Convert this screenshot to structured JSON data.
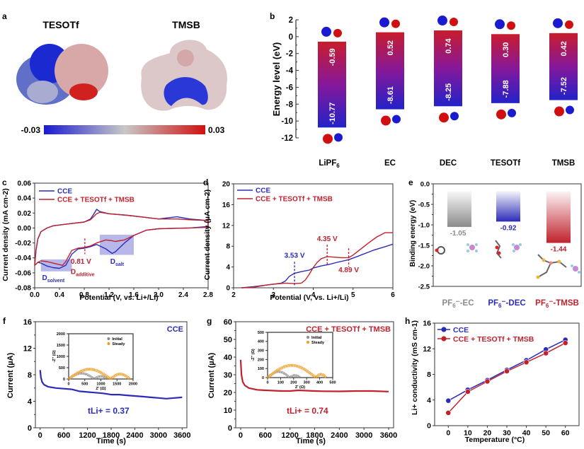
{
  "colors": {
    "blue": "#2b2bb8",
    "red": "#c0222c",
    "gray": "#8a8a8a",
    "orange": "#f39a1e",
    "axis": "#333333"
  },
  "chart_data": [
    {
      "panel": "a",
      "type": "heatmap",
      "title_left": "TESOTf",
      "title_right": "TMSB",
      "colorbar": {
        "min": -0.03,
        "max": 0.03,
        "min_label": "-0.03",
        "max_label": "0.03",
        "colors": [
          "#1a1ad0",
          "#c8c8c8",
          "#d01010"
        ]
      }
    },
    {
      "panel": "b",
      "type": "bar",
      "ylabel": "Energy level (eV)",
      "ylim": [
        -12,
        2
      ],
      "yticks": [
        "2",
        "0",
        "-2",
        "-4",
        "-6",
        "-8",
        "-10",
        "-12"
      ],
      "categories": [
        "LiPF6",
        "EC",
        "DEC",
        "TESOTf",
        "TMSB"
      ],
      "lumo": [
        -0.59,
        0.52,
        0.74,
        0.3,
        0.42
      ],
      "homo": [
        -10.77,
        -8.61,
        -8.25,
        -7.88,
        -7.52
      ],
      "lumo_labels": [
        "-0.59",
        "0.52",
        "0.74",
        "0.30",
        "0.42"
      ],
      "homo_labels": [
        "-10.77",
        "-8.61",
        "-8.25",
        "-7.88",
        "-7.52"
      ]
    },
    {
      "panel": "c",
      "type": "line",
      "xlabel": "Potential (V, vs. Li+/Li)",
      "ylabel": "Current density (mA cm-2)",
      "xlim": [
        0,
        2.8
      ],
      "ylim": [
        -0.08,
        0.06
      ],
      "xticks": [
        "0.0",
        "0.4",
        "0.8",
        "1.2",
        "1.6",
        "2.0",
        "2.4",
        "2.8"
      ],
      "yticks": [
        "0.06",
        "0.04",
        "0.02",
        "0.00",
        "-0.02",
        "-0.04",
        "-0.06",
        "-0.08"
      ],
      "legend": [
        "CCE",
        "CCE + TESOTf + TMSB"
      ],
      "annotations": [
        "0.81 V",
        "D_additive",
        "D_solvent",
        "D_salt"
      ],
      "series": [
        {
          "name": "CCE",
          "x": [
            0.0,
            0.02,
            0.05,
            0.1,
            0.2,
            0.3,
            0.4,
            0.6,
            0.8,
            0.9,
            0.95,
            1.0,
            1.05,
            1.2,
            1.5,
            1.8,
            2.0,
            2.2,
            2.3,
            2.5,
            2.8,
            2.8,
            2.5,
            2.0,
            1.8,
            1.6,
            1.45,
            1.3,
            1.25,
            1.15,
            1.0,
            0.9,
            0.8,
            0.7,
            0.6,
            0.5,
            0.4,
            0.3,
            0.2,
            0.1,
            0.05,
            0.0
          ],
          "y": [
            -0.05,
            -0.03,
            -0.015,
            -0.005,
            0.0,
            0.003,
            0.004,
            0.006,
            0.008,
            0.012,
            0.018,
            0.025,
            0.022,
            0.019,
            0.017,
            0.014,
            0.012,
            0.014,
            0.015,
            0.012,
            0.01,
            0.002,
            0.0,
            -0.001,
            -0.003,
            -0.01,
            -0.02,
            -0.032,
            -0.034,
            -0.028,
            -0.022,
            -0.025,
            -0.027,
            -0.028,
            -0.035,
            -0.05,
            -0.054,
            -0.053,
            -0.051,
            -0.047,
            -0.046,
            -0.05
          ]
        },
        {
          "name": "CCE + TESOTf + TMSB",
          "x": [
            0.0,
            0.02,
            0.05,
            0.1,
            0.2,
            0.3,
            0.4,
            0.6,
            0.8,
            0.9,
            0.95,
            1.0,
            1.05,
            1.2,
            1.5,
            1.8,
            2.0,
            2.2,
            2.3,
            2.5,
            2.8,
            2.8,
            2.5,
            2.0,
            1.8,
            1.6,
            1.45,
            1.3,
            1.25,
            1.15,
            1.0,
            0.9,
            0.8,
            0.7,
            0.6,
            0.5,
            0.45,
            0.35,
            0.2,
            0.1,
            0.05,
            0.0
          ],
          "y": [
            -0.05,
            -0.03,
            -0.015,
            -0.005,
            0.0,
            0.003,
            0.004,
            0.006,
            0.008,
            0.011,
            0.015,
            0.019,
            0.021,
            0.019,
            0.017,
            0.014,
            0.012,
            0.012,
            0.012,
            0.011,
            0.01,
            0.001,
            0.0,
            -0.001,
            -0.003,
            -0.01,
            -0.016,
            -0.018,
            -0.017,
            -0.016,
            -0.02,
            -0.024,
            -0.026,
            -0.027,
            -0.03,
            -0.045,
            -0.05,
            -0.048,
            -0.045,
            -0.044,
            -0.046,
            -0.05
          ]
        }
      ]
    },
    {
      "panel": "d",
      "type": "line",
      "xlabel": "Potential (V, vs. Li+/Li)",
      "ylabel": "Current density (µA cm-2)",
      "xlim": [
        2,
        6
      ],
      "ylim": [
        0,
        20
      ],
      "xticks": [
        "2",
        "3",
        "4",
        "5",
        "6"
      ],
      "yticks": [
        "20",
        "16",
        "12",
        "8",
        "4",
        "0"
      ],
      "legend": [
        "CCE",
        "CCE + TESOTf + TMSB"
      ],
      "annotations": [
        "3.53 V",
        "4.35 V",
        "4.89 V"
      ],
      "series": [
        {
          "name": "CCE",
          "x": [
            2.2,
            2.5,
            2.8,
            3.0,
            3.2,
            3.3,
            3.4,
            3.53,
            3.7,
            3.9,
            4.0,
            4.2,
            4.4,
            4.6,
            4.89,
            5.2,
            5.5,
            5.8,
            6.0
          ],
          "y": [
            0,
            0.2,
            0.5,
            0.7,
            0.9,
            1.3,
            2.2,
            2.8,
            3.1,
            3.4,
            3.8,
            4.2,
            4.5,
            4.9,
            5.4,
            6.3,
            7.2,
            7.9,
            8.4
          ]
        },
        {
          "name": "CCE + TESOTf + TMSB",
          "x": [
            2.2,
            2.5,
            2.8,
            3.0,
            3.3,
            3.53,
            3.7,
            3.8,
            3.9,
            4.0,
            4.1,
            4.2,
            4.35,
            4.5,
            4.7,
            4.89,
            5.0,
            5.2,
            5.4,
            5.6,
            5.8,
            6.0
          ],
          "y": [
            0,
            0.1,
            0.5,
            0.7,
            0.9,
            0.8,
            0.9,
            1.5,
            2.6,
            3.9,
            4.9,
            5.6,
            6.0,
            5.9,
            5.8,
            5.8,
            6.3,
            7.5,
            8.7,
            9.8,
            10.6,
            10.6
          ]
        }
      ]
    },
    {
      "panel": "e",
      "type": "bar",
      "ylabel": "Binding energy (eV)",
      "ylim": [
        -2.5,
        0.0
      ],
      "yticks": [
        "0.0",
        "-0.5",
        "-1.0",
        "-1.5",
        "-2.0",
        "-2.5"
      ],
      "categories": [
        "PF6−-EC",
        "PF6−-DEC",
        "PF6−-TMSB"
      ],
      "values": [
        -1.05,
        -0.92,
        -1.44
      ],
      "value_labels": [
        "-1.05",
        "-0.92",
        "-1.44"
      ],
      "bar_colors": [
        "#8a8a8a",
        "#2b2bb8",
        "#c0222c"
      ]
    },
    {
      "panel": "f",
      "type": "line",
      "xlabel": "Time (s)",
      "ylabel": "Current (µA)",
      "xlim": [
        0,
        3600
      ],
      "ylim": [
        0,
        16
      ],
      "xticks": [
        "0",
        "600",
        "1200",
        "1800",
        "2400",
        "3000",
        "3600"
      ],
      "yticks": [
        "16",
        "12",
        "8",
        "4",
        "0"
      ],
      "label": "CCE",
      "annotation": "tLi+ = 0.37",
      "series": [
        {
          "name": "CCE",
          "x": [
            0,
            20,
            50,
            100,
            200,
            400,
            600,
            800,
            1000,
            1200,
            1400,
            1600,
            1800,
            2000,
            2200,
            2400,
            2600,
            2800,
            3000,
            3200,
            3400,
            3600
          ],
          "y": [
            8.7,
            7.6,
            6.9,
            6.5,
            6.2,
            6.0,
            5.9,
            5.8,
            5.5,
            5.4,
            5.3,
            5.2,
            5.0,
            5.0,
            4.9,
            4.8,
            4.7,
            4.6,
            4.5,
            4.4,
            4.5,
            4.6
          ]
        }
      ],
      "inset": {
        "xlabel": "Z' (Ω)",
        "ylabel": "-Z'' (Ω)",
        "xlim": [
          0,
          2000
        ],
        "ylim": [
          0,
          2000
        ],
        "xticks": [
          "0",
          "500",
          "1000",
          "1500",
          "2000"
        ],
        "yticks": [
          "2000",
          "1500",
          "1000",
          "500",
          "0"
        ],
        "legend": [
          "Initial",
          "Steady"
        ],
        "series": [
          {
            "name": "Initial",
            "arcs": [
              [
                0,
                800,
                250
              ],
              [
                800,
                1200,
                120
              ]
            ]
          },
          {
            "name": "Steady",
            "arcs": [
              [
                0,
                1300,
                430
              ],
              [
                1300,
                1900,
                220
              ]
            ]
          }
        ]
      }
    },
    {
      "panel": "g",
      "type": "line",
      "xlabel": "Time (s)",
      "ylabel": "Current (µA)",
      "xlim": [
        0,
        3600
      ],
      "ylim": [
        0,
        60
      ],
      "xticks": [
        "0",
        "600",
        "1200",
        "1800",
        "2400",
        "3000",
        "3600"
      ],
      "yticks": [
        "60",
        "50",
        "40",
        "30",
        "20",
        "10",
        "0"
      ],
      "label": "CCE + TESOTf + TMSB",
      "annotation": "tLi+ = 0.74",
      "series": [
        {
          "name": "CCE + TESOTf + TMSB",
          "x": [
            0,
            20,
            50,
            100,
            200,
            400,
            600,
            800,
            1000,
            1200,
            1400,
            1600,
            1800,
            2000,
            2400,
            2800,
            3200,
            3600
          ],
          "y": [
            38.5,
            30,
            26,
            24,
            22.5,
            21.5,
            21.2,
            21,
            20.8,
            20.8,
            21.2,
            21,
            20.8,
            20.7,
            20.6,
            20.8,
            20.8,
            20.5
          ]
        }
      ],
      "inset": {
        "xlabel": "Z' (Ω)",
        "ylabel": "-Z'' (Ω)",
        "xlim": [
          0,
          500
        ],
        "ylim": [
          0,
          500
        ],
        "xticks": [
          "0",
          "100",
          "200",
          "300",
          "400",
          "500"
        ],
        "yticks": [
          "500",
          "400",
          "300",
          "200",
          "100",
          "0"
        ],
        "legend": [
          "Initial",
          "Steady"
        ],
        "series": [
          {
            "name": "Initial",
            "arcs": [
              [
                0,
                170,
                65
              ],
              [
                170,
                250,
                25
              ]
            ]
          },
          {
            "name": "Steady",
            "arcs": [
              [
                0,
                370,
                135
              ],
              [
                370,
                450,
                35
              ]
            ]
          }
        ]
      }
    },
    {
      "panel": "h",
      "type": "line",
      "xlabel": "Temperature (°C)",
      "ylabel": "Li+ conductivity (mS cm-1)",
      "xlim": [
        -7,
        67
      ],
      "ylim": [
        0,
        16
      ],
      "xticks": [
        "0",
        "10",
        "20",
        "30",
        "40",
        "50",
        "60"
      ],
      "yticks": [
        "16",
        "12",
        "8",
        "4",
        "0"
      ],
      "legend": [
        "CCE",
        "CCE + TESOTf + TMSB"
      ],
      "x": [
        0,
        10,
        20,
        30,
        40,
        50,
        60
      ],
      "series": [
        {
          "name": "CCE",
          "values": [
            3.9,
            5.6,
            7.1,
            8.7,
            10.2,
            11.9,
            13.4
          ]
        },
        {
          "name": "CCE + TESOTf + TMSB",
          "values": [
            2.0,
            5.3,
            6.9,
            8.5,
            9.9,
            11.3,
            12.9
          ]
        }
      ]
    }
  ]
}
